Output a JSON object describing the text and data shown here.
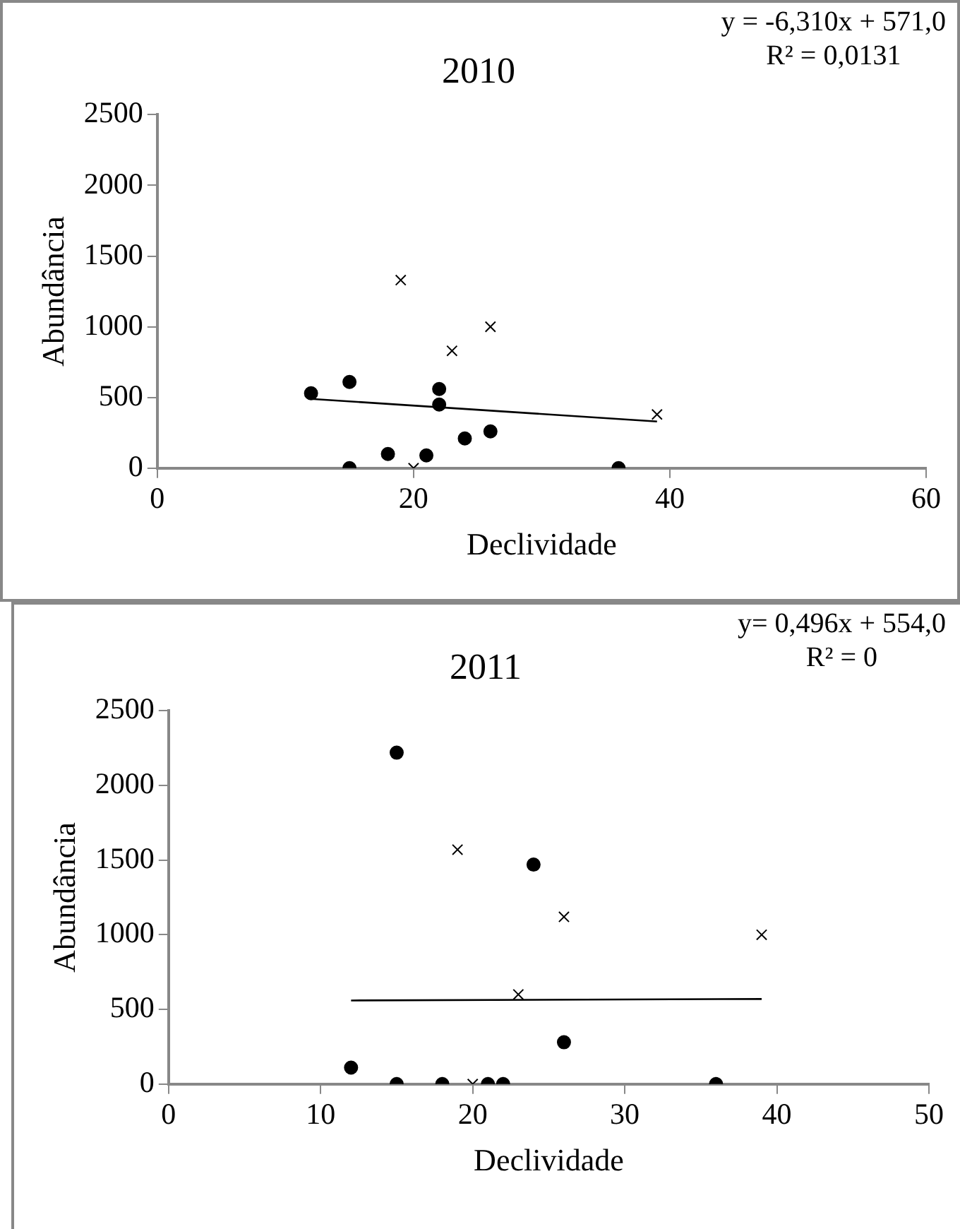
{
  "chart_data": [
    {
      "type": "scatter",
      "title": "2010",
      "xlabel": "Declividade",
      "ylabel": "Abundância",
      "xlim": [
        0,
        60
      ],
      "xticks": [
        0,
        20,
        40,
        60
      ],
      "ylim": [
        0,
        2500
      ],
      "yticks": [
        0,
        500,
        1000,
        1500,
        2000,
        2500
      ],
      "grid": false,
      "legend": false,
      "annotations": [
        "y = -6,310x + 571,0",
        "R² = 0,0131"
      ],
      "series": [
        {
          "type": "scatter",
          "marker": "circle",
          "color": "#000000",
          "x": [
            12,
            15,
            15,
            18,
            21,
            22,
            22,
            24,
            26,
            36
          ],
          "values": [
            530,
            610,
            0,
            100,
            90,
            560,
            450,
            210,
            260,
            0
          ]
        },
        {
          "type": "scatter",
          "marker": "cross",
          "color": "#000000",
          "x": [
            19,
            23,
            26,
            20,
            39
          ],
          "values": [
            1330,
            830,
            1000,
            0,
            380
          ]
        },
        {
          "type": "line",
          "marker": "none",
          "color": "#000000",
          "x": [
            12,
            39
          ],
          "values": [
            490,
            330
          ]
        }
      ]
    },
    {
      "type": "scatter",
      "title": "2011",
      "xlabel": "Declividade",
      "ylabel": "Abundância",
      "xlim": [
        0,
        50
      ],
      "xticks": [
        0,
        10,
        20,
        30,
        40,
        50
      ],
      "ylim": [
        0,
        2500
      ],
      "yticks": [
        0,
        500,
        1000,
        1500,
        2000,
        2500
      ],
      "grid": false,
      "legend": false,
      "annotations": [
        "y= 0,496x + 554,0",
        "R² = 0"
      ],
      "series": [
        {
          "type": "scatter",
          "marker": "circle",
          "color": "#000000",
          "x": [
            12,
            15,
            15,
            18,
            21,
            22,
            24,
            26,
            36
          ],
          "values": [
            110,
            2220,
            0,
            0,
            0,
            0,
            1470,
            280,
            0
          ]
        },
        {
          "type": "scatter",
          "marker": "cross",
          "color": "#000000",
          "x": [
            19,
            23,
            26,
            20,
            39
          ],
          "values": [
            1570,
            600,
            1120,
            0,
            1000
          ]
        },
        {
          "type": "line",
          "marker": "none",
          "color": "#000000",
          "x": [
            12,
            39
          ],
          "values": [
            560,
            570
          ]
        }
      ]
    }
  ]
}
